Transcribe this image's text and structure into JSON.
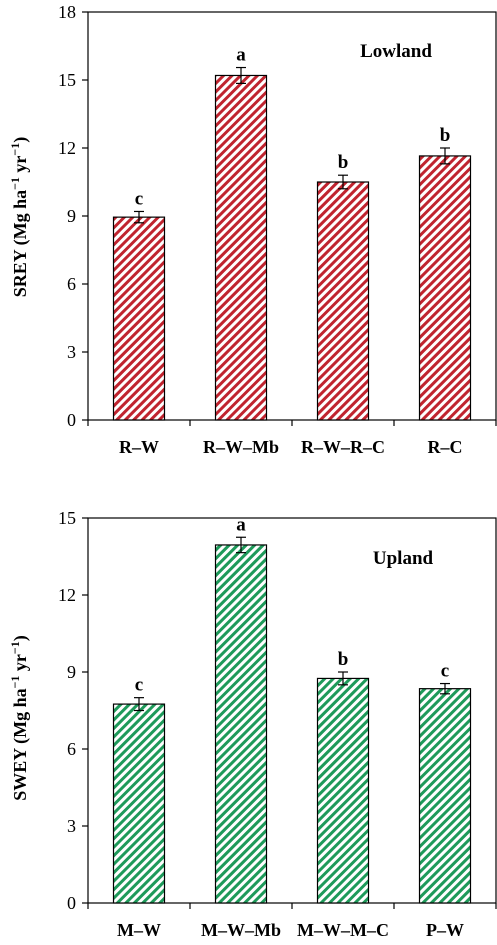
{
  "colors": {
    "lowland_stripe": "#c0242f",
    "upland_stripe": "#1e9a5a",
    "bar_outline": "#000000",
    "axis": "#000000"
  },
  "chart_data": [
    {
      "type": "bar",
      "panel_label": "Lowland",
      "ylabel_main": "SREY (Mg ha",
      "ylabel_sup1": "−1",
      "ylabel_mid": " yr",
      "ylabel_sup2": "−1",
      "ylabel_end": ")",
      "ylim": [
        0,
        18
      ],
      "yticks": [
        0,
        3,
        6,
        9,
        12,
        15,
        18
      ],
      "categories": [
        "R–W",
        "R–W–Mb",
        "R–W–R–C",
        "R–C"
      ],
      "values": [
        8.95,
        15.2,
        10.5,
        11.65
      ],
      "errors": [
        0.25,
        0.35,
        0.3,
        0.35
      ],
      "significance": [
        "c",
        "a",
        "b",
        "b"
      ],
      "fill": "hatched-red",
      "grid": false
    },
    {
      "type": "bar",
      "panel_label": "Upland",
      "ylabel_main": "SWEY (Mg ha",
      "ylabel_sup1": "−1",
      "ylabel_mid": " yr",
      "ylabel_sup2": "−1",
      "ylabel_end": ")",
      "ylim": [
        0,
        15
      ],
      "yticks": [
        0,
        3,
        6,
        9,
        12,
        15
      ],
      "categories": [
        "M–W",
        "M–W–Mb",
        "M–W–M–C",
        "P–W"
      ],
      "values": [
        7.75,
        13.95,
        8.75,
        8.35
      ],
      "errors": [
        0.25,
        0.3,
        0.25,
        0.2
      ],
      "significance": [
        "c",
        "a",
        "b",
        "c"
      ],
      "fill": "hatched-green",
      "grid": false
    }
  ]
}
